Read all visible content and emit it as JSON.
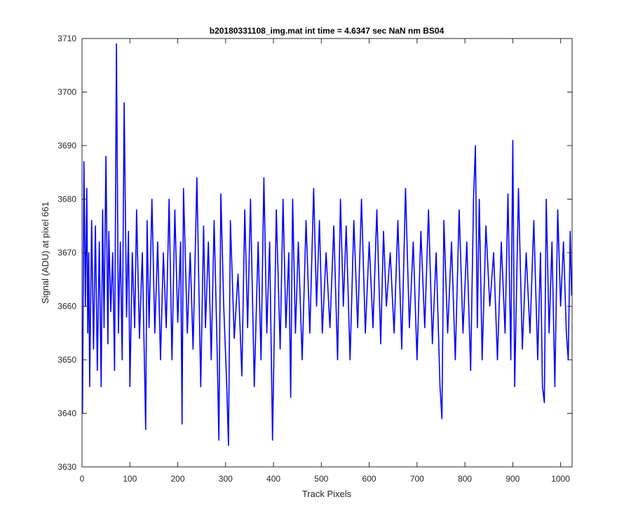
{
  "chart_data": {
    "type": "line",
    "title": "b20180331108_img.mat int time = 4.6347 sec  NaN nm BS04",
    "xlabel": "Track Pixels",
    "ylabel": "Signal (ADU) at pixel 661",
    "xlim": [
      0,
      1024
    ],
    "ylim": [
      3630,
      3710
    ],
    "xticks": [
      0,
      100,
      200,
      300,
      400,
      500,
      600,
      700,
      800,
      900,
      1000
    ],
    "yticks": [
      3630,
      3640,
      3650,
      3660,
      3670,
      3680,
      3690,
      3700,
      3710
    ],
    "grid": false,
    "series": [
      {
        "color": "#0000ff",
        "x": [
          1,
          4,
          7,
          10,
          12,
          14,
          16,
          20,
          24,
          28,
          32,
          36,
          40,
          43,
          46,
          50,
          54,
          56,
          60,
          64,
          68,
          72,
          76,
          80,
          84,
          88,
          93,
          97,
          100,
          105,
          110,
          114,
          120,
          126,
          133,
          136,
          140,
          146,
          152,
          158,
          164,
          170,
          176,
          182,
          188,
          194,
          200,
          206,
          209,
          212,
          220,
          226,
          232,
          240,
          248,
          254,
          258,
          264,
          270,
          276,
          282,
          286,
          290,
          296,
          302,
          306,
          310,
          318,
          326,
          334,
          340,
          346,
          352,
          360,
          368,
          374,
          380,
          386,
          392,
          398,
          406,
          414,
          420,
          426,
          432,
          436,
          440,
          446,
          452,
          460,
          468,
          476,
          484,
          490,
          496,
          502,
          510,
          518,
          526,
          534,
          540,
          546,
          552,
          560,
          568,
          576,
          584,
          592,
          600,
          608,
          616,
          624,
          630,
          636,
          644,
          652,
          660,
          668,
          676,
          684,
          692,
          700,
          708,
          716,
          724,
          732,
          740,
          748,
          752,
          756,
          764,
          772,
          780,
          788,
          796,
          804,
          812,
          818,
          822,
          826,
          830,
          836,
          844,
          852,
          860,
          868,
          876,
          884,
          890,
          896,
          900,
          904,
          912,
          920,
          928,
          936,
          944,
          952,
          958,
          962,
          966,
          970,
          976,
          982,
          988,
          994,
          1000,
          1006,
          1012,
          1016,
          1020,
          1023
        ],
        "y": [
          3640,
          3687,
          3660,
          3682,
          3655,
          3670,
          3645,
          3676,
          3652,
          3675,
          3648,
          3672,
          3645,
          3678,
          3656,
          3688,
          3653,
          3674,
          3659,
          3670,
          3648,
          3709,
          3655,
          3672,
          3650,
          3698,
          3658,
          3674,
          3645,
          3670,
          3656,
          3678,
          3654,
          3670,
          3637,
          3676,
          3656,
          3680,
          3655,
          3672,
          3650,
          3670,
          3656,
          3680,
          3650,
          3678,
          3657,
          3672,
          3638,
          3682,
          3655,
          3670,
          3652,
          3684,
          3645,
          3675,
          3656,
          3672,
          3650,
          3676,
          3653,
          3635,
          3681,
          3660,
          3646,
          3634,
          3676,
          3654,
          3666,
          3647,
          3678,
          3656,
          3680,
          3645,
          3672,
          3650,
          3684,
          3655,
          3672,
          3635,
          3678,
          3652,
          3680,
          3656,
          3670,
          3643,
          3680,
          3655,
          3672,
          3650,
          3676,
          3655,
          3682,
          3660,
          3676,
          3655,
          3670,
          3656,
          3675,
          3650,
          3680,
          3660,
          3675,
          3650,
          3676,
          3656,
          3680,
          3655,
          3672,
          3656,
          3678,
          3653,
          3674,
          3660,
          3670,
          3655,
          3676,
          3652,
          3682,
          3656,
          3672,
          3650,
          3674,
          3656,
          3678,
          3653,
          3670,
          3645,
          3639,
          3676,
          3655,
          3672,
          3650,
          3678,
          3655,
          3672,
          3648,
          3680,
          3690,
          3656,
          3680,
          3650,
          3675,
          3660,
          3670,
          3650,
          3672,
          3655,
          3681,
          3650,
          3691,
          3645,
          3682,
          3652,
          3670,
          3655,
          3676,
          3650,
          3670,
          3645,
          3642,
          3680,
          3655,
          3672,
          3645,
          3678,
          3660,
          3672,
          3655,
          3650,
          3674,
          3662
        ]
      }
    ]
  }
}
